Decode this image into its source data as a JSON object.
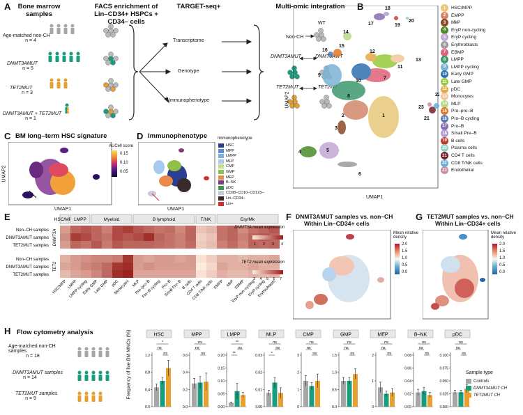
{
  "panels": {
    "A": "A",
    "B": "B",
    "C": "C",
    "D": "D",
    "E": "E",
    "F": "F",
    "G": "G",
    "H": "H"
  },
  "panelA": {
    "col_titles": [
      "Bone marrow samples",
      "FACS enrichment of Lin–CD34+ HSPCs + CD34– cells",
      "TARGET-seq+",
      "Multi-omic integration"
    ],
    "groups": [
      {
        "label": "Age-matched non-CH",
        "n": "n = 4",
        "color": "#a6a6a6"
      },
      {
        "label": "DNMT3AMUT",
        "n": "n = 5",
        "color": "#1a9c7e"
      },
      {
        "label": "TET2MUT",
        "n": "n = 3",
        "color": "#e5a02f"
      },
      {
        "label": "DNMT3AMUT + TET2MUT",
        "n": "n = 1",
        "color": "#1a9c7e"
      }
    ],
    "assays": [
      "Transcriptome",
      "Genotype",
      "Immunophenotype"
    ],
    "integration": [
      "WT",
      "Non-CH",
      "DNMT3AMUT",
      "DNMT3AWT",
      "TET2MUT",
      "TET2WT"
    ]
  },
  "panelB": {
    "xlabel": "UMAP1",
    "ylabel": "UMAP2",
    "clusters": [
      {
        "id": "1",
        "name": "HSC/MPP",
        "color": "#e8c77a"
      },
      {
        "id": "2",
        "name": "EMPP",
        "color": "#d3876a"
      },
      {
        "id": "3",
        "name": "MkP",
        "color": "#8b4a24"
      },
      {
        "id": "4",
        "name": "EryP non-cycling",
        "color": "#4a8c2a"
      },
      {
        "id": "5",
        "name": "EryP cycling",
        "color": "#c4a7d4"
      },
      {
        "id": "6",
        "name": "Erythroblasts",
        "color": "#9c9c9c"
      },
      {
        "id": "7",
        "name": "EBMP",
        "color": "#e0627a"
      },
      {
        "id": "8",
        "name": "LMPP",
        "color": "#3d9a6e"
      },
      {
        "id": "9",
        "name": "LMPP cycling",
        "color": "#7ab5d6"
      },
      {
        "id": "10",
        "name": "Early GMP",
        "color": "#2f6fb0"
      },
      {
        "id": "11",
        "name": "Late GMP",
        "color": "#9ac93c"
      },
      {
        "id": "12",
        "name": "pDC",
        "color": "#e6a84a"
      },
      {
        "id": "13",
        "name": "Monocytes",
        "color": "#f0c89a"
      },
      {
        "id": "14",
        "name": "MLP",
        "color": "#b9d98a"
      },
      {
        "id": "15",
        "name": "Pre–pro–B",
        "color": "#e07a2a"
      },
      {
        "id": "16",
        "name": "Pro–B cycling",
        "color": "#5a7ab0"
      },
      {
        "id": "17",
        "name": "Pro–B",
        "color": "#8a6fb0"
      },
      {
        "id": "18",
        "name": "Small Pre–B",
        "color": "#b39ad6"
      },
      {
        "id": "19",
        "name": "B cells",
        "color": "#c0392b"
      },
      {
        "id": "20",
        "name": "Plasma cells",
        "color": "#8fd0c4"
      },
      {
        "id": "21",
        "name": "CD4 T cells",
        "color": "#7a1f2a"
      },
      {
        "id": "22",
        "name": "CD8 T/NK cells",
        "color": "#6ab0d8"
      },
      {
        "id": "23",
        "name": "Endothelial",
        "color": "#c98aa0"
      }
    ]
  },
  "panelC": {
    "title": "BM long–term HSC signature",
    "xlabel": "UMAP1",
    "ylabel": "UMAP2",
    "legend_title": "AUCell score",
    "ticks": [
      "0.15",
      "0.10",
      "0.05"
    ]
  },
  "panelD": {
    "title": "Immunophenotype",
    "xlabel": "UMAP1",
    "legend_title": "Immunophenotype",
    "items": [
      {
        "name": "HSC",
        "color": "#2c3e8f"
      },
      {
        "name": "MPP",
        "color": "#5b8fd0"
      },
      {
        "name": "LMPP",
        "color": "#7ab0e0"
      },
      {
        "name": "MLP",
        "color": "#a8c8ef"
      },
      {
        "name": "CMP",
        "color": "#c5dd8a"
      },
      {
        "name": "GMP",
        "color": "#8fc04a"
      },
      {
        "name": "MEP",
        "color": "#e88a4a"
      },
      {
        "name": "B–NK",
        "color": "#8a3a7a"
      },
      {
        "name": "pDC",
        "color": "#3a9a4a"
      },
      {
        "name": "CD38–CD10–CD123–",
        "color": "#c8c8e0"
      },
      {
        "name": "Lin–CD34–",
        "color": "#3a2a2a"
      },
      {
        "name": "Lin+",
        "color": "#d03030"
      }
    ]
  },
  "panelE": {
    "groups": [
      "HSC/MPP",
      "LMPP",
      "Myeloid",
      "B lymphoid",
      "T/NK",
      "Ery/Mk"
    ],
    "row_labels": [
      "Non–CH samples",
      "DNMT3AMUT samples",
      "TET2MUT samples"
    ],
    "block_labels": [
      "DNMT3A",
      "TET2"
    ],
    "columns": [
      "HSC/MPP",
      "LMPP",
      "LMPP cycling",
      "Early GMP",
      "Late GMP",
      "pDC",
      "Monocytes",
      "MLP",
      "Pre–pro–B",
      "Pro–B cycling",
      "Pro–B",
      "Small Pre–B",
      "B cells",
      "CD4 T cells",
      "CD8 T/NK cells",
      "EMPP",
      "MkP",
      "EBMP",
      "EryP non–cycling",
      "EryP cycling",
      "Erythroblasts"
    ],
    "dnmt3a": [
      [
        2.2,
        3.0,
        3.2,
        3.0,
        2.6,
        3.4,
        3.6,
        3.2,
        3.0,
        2.8,
        2.9,
        2.5,
        3.0,
        1.6,
        1.8,
        2.8,
        3.0,
        2.4,
        2.8,
        3.0,
        3.2
      ],
      [
        2.4,
        3.6,
        3.4,
        3.0,
        2.8,
        3.4,
        3.2,
        3.4,
        3.8,
        3.0,
        2.8,
        2.6,
        3.0,
        1.4,
        1.6,
        2.8,
        3.0,
        2.6,
        3.0,
        3.2,
        3.0
      ],
      [
        2.2,
        3.0,
        2.8,
        3.2,
        2.7,
        3.2,
        3.0,
        3.0,
        3.0,
        2.9,
        2.8,
        2.6,
        2.9,
        1.5,
        1.7,
        2.6,
        2.9,
        2.5,
        3.0,
        2.9,
        3.0
      ]
    ],
    "tet2": [
      [
        4.2,
        4.6,
        4.8,
        5.0,
        5.0,
        5.2,
        6.6,
        4.6,
        4.4,
        4.6,
        4.6,
        4.4,
        4.6,
        3.2,
        3.6,
        4.2,
        4.2,
        4.0,
        4.2,
        4.2,
        4.4
      ],
      [
        4.4,
        4.6,
        5.0,
        5.2,
        5.6,
        6.6,
        6.8,
        4.6,
        4.8,
        4.6,
        4.6,
        4.6,
        4.6,
        3.0,
        3.4,
        4.4,
        4.2,
        4.2,
        4.4,
        4.2,
        4.2
      ],
      [
        4.0,
        4.4,
        4.6,
        5.0,
        5.6,
        6.8,
        7.0,
        4.4,
        4.4,
        4.4,
        4.4,
        4.4,
        4.4,
        3.2,
        3.6,
        4.2,
        4.0,
        4.0,
        4.2,
        4.0,
        4.2
      ]
    ],
    "legend1_title": "DNMT3A mean expression",
    "legend1_ticks": [
      "1",
      "2",
      "3",
      "4"
    ],
    "legend2_title": "TET2 mean expression",
    "legend2_ticks": [
      "3",
      "4",
      "5",
      "6",
      "7"
    ]
  },
  "panelF": {
    "title": "DNMT3AMUT samples vs. non–CH",
    "subtitle": "Within Lin–CD34+ cells",
    "legend_title": "Mean relative density",
    "ticks": [
      "2.0",
      "1.5",
      "1.0",
      "0.5",
      "0.0"
    ]
  },
  "panelG": {
    "title": "TET2MUT samples vs. non–CH",
    "subtitle": "Within Lin–CD34+ cells",
    "legend_title": "Mean relative density",
    "ticks": [
      "2.0",
      "1.5",
      "1.0",
      "0.5",
      "0.0"
    ]
  },
  "panelH": {
    "title": "Flow cytometry analysis",
    "groups": [
      {
        "label": "Age-matched non-CH samples",
        "n": "n = 18",
        "color": "#a6a6a6"
      },
      {
        "label": "DNMT3AMUT samples",
        "n": "n = 14",
        "color": "#1a9c7e"
      },
      {
        "label": "TET2MUT samples",
        "n": "n = 9",
        "color": "#e5a02f"
      }
    ],
    "ylabel": "Frequency of live BM MNCs (%)",
    "legend_title": "Sample type",
    "legend_items": [
      "Controls",
      "DNMT3AMUT CH",
      "TET2MUT CH"
    ],
    "colors": [
      "#a6a6a6",
      "#1a9c7e",
      "#e5a02f"
    ]
  },
  "chart_data": [
    {
      "type": "bar",
      "title": "HSC",
      "categories": [
        "Controls",
        "DNMT3AMUT CH",
        "TET2MUT CH"
      ],
      "values": [
        0.45,
        0.6,
        0.9
      ],
      "errors": [
        0.08,
        0.08,
        0.18
      ],
      "ylim": [
        0,
        1.2
      ],
      "yticks": [
        "0.0",
        "0.4",
        "0.8",
        "1.2"
      ],
      "sig": [
        {
          "a": 0,
          "b": 2,
          "label": "*"
        },
        {
          "a": 0,
          "b": 1,
          "label": "ns"
        },
        {
          "a": 1,
          "b": 2,
          "label": "ns"
        }
      ]
    },
    {
      "type": "bar",
      "title": "MPP",
      "categories": [
        "Controls",
        "DNMT3AMUT CH",
        "TET2MUT CH"
      ],
      "values": [
        0.27,
        0.28,
        0.29
      ],
      "errors": [
        0.06,
        0.07,
        0.1
      ],
      "ylim": [
        0,
        0.6
      ],
      "yticks": [
        "0.0",
        "0.2",
        "0.4",
        "0.6"
      ],
      "sig": [
        {
          "a": 0,
          "b": 2,
          "label": "ns"
        },
        {
          "a": 0,
          "b": 1,
          "label": "ns"
        },
        {
          "a": 1,
          "b": 2,
          "label": "ns"
        }
      ]
    },
    {
      "type": "bar",
      "title": "LMPP",
      "categories": [
        "Controls",
        "DNMT3AMUT CH",
        "TET2MUT CH"
      ],
      "values": [
        0.015,
        0.06,
        0.045
      ],
      "errors": [
        0.003,
        0.03,
        0.01
      ],
      "ylim": [
        0,
        0.2
      ],
      "yticks": [
        "0.00",
        "0.05",
        "0.10",
        "0.15",
        "0.20"
      ],
      "sig": [
        {
          "a": 0,
          "b": 2,
          "label": "**"
        },
        {
          "a": 1,
          "b": 2,
          "label": "ns"
        },
        {
          "a": 0,
          "b": 1,
          "label": "**"
        }
      ]
    },
    {
      "type": "bar",
      "title": "MLP",
      "categories": [
        "Controls",
        "DNMT3AMUT CH",
        "TET2MUT CH"
      ],
      "values": [
        0.008,
        0.014,
        0.008
      ],
      "errors": [
        0.0015,
        0.003,
        0.003
      ],
      "ylim": [
        0,
        0.03
      ],
      "yticks": [
        "0.00",
        "0.01",
        "0.02",
        "0.03"
      ],
      "sig": [
        {
          "a": 0,
          "b": 2,
          "label": "ns"
        },
        {
          "a": 1,
          "b": 2,
          "label": "ns"
        },
        {
          "a": 0,
          "b": 1,
          "label": "*"
        }
      ]
    },
    {
      "type": "bar",
      "title": "CMP",
      "categories": [
        "Controls",
        "DNMT3AMUT CH",
        "TET2MUT CH"
      ],
      "values": [
        1.5,
        1.2,
        1.5
      ],
      "errors": [
        0.3,
        0.2,
        0.4
      ],
      "ylim": [
        0,
        3
      ],
      "yticks": [
        "0",
        "1",
        "2",
        "3"
      ],
      "sig": [
        {
          "a": 0,
          "b": 2,
          "label": "ns"
        },
        {
          "a": 0,
          "b": 1,
          "label": "ns"
        },
        {
          "a": 1,
          "b": 2,
          "label": "ns"
        }
      ]
    },
    {
      "type": "bar",
      "title": "GMP",
      "categories": [
        "Controls",
        "DNMT3AMUT CH",
        "TET2MUT CH"
      ],
      "values": [
        0.75,
        0.75,
        0.95
      ],
      "errors": [
        0.1,
        0.1,
        0.15
      ],
      "ylim": [
        0,
        1.5
      ],
      "yticks": [
        "0.0",
        "0.5",
        "1.0",
        "1.5"
      ],
      "sig": [
        {
          "a": 0,
          "b": 2,
          "label": "ns"
        },
        {
          "a": 0,
          "b": 1,
          "label": "ns"
        },
        {
          "a": 1,
          "b": 2,
          "label": "ns"
        }
      ]
    },
    {
      "type": "bar",
      "title": "MEP",
      "categories": [
        "Controls",
        "DNMT3AMUT CH",
        "TET2MUT CH"
      ],
      "values": [
        0.75,
        0.5,
        0.55
      ],
      "errors": [
        0.2,
        0.1,
        0.15
      ],
      "ylim": [
        0,
        2
      ],
      "yticks": [
        "0",
        "1",
        "2"
      ],
      "sig": [
        {
          "a": 0,
          "b": 2,
          "label": "ns"
        },
        {
          "a": 0,
          "b": 1,
          "label": "ns"
        },
        {
          "a": 1,
          "b": 2,
          "label": "ns"
        }
      ]
    },
    {
      "type": "bar",
      "title": "B–NK",
      "categories": [
        "Controls",
        "DNMT3AMUT CH",
        "TET2MUT CH"
      ],
      "values": [
        0.022,
        0.024,
        0.018
      ],
      "errors": [
        0.005,
        0.006,
        0.004
      ],
      "ylim": [
        0,
        0.08
      ],
      "yticks": [
        "0.00",
        "0.02",
        "0.04",
        "0.06",
        "0.08"
      ],
      "sig": [
        {
          "a": 0,
          "b": 2,
          "label": "ns"
        },
        {
          "a": 0,
          "b": 1,
          "label": "ns"
        },
        {
          "a": 1,
          "b": 2,
          "label": "ns"
        }
      ]
    },
    {
      "type": "bar",
      "title": "pDC",
      "categories": [
        "Controls",
        "DNMT3AMUT CH",
        "TET2MUT CH"
      ],
      "values": [
        0.028,
        0.028,
        0.035
      ],
      "errors": [
        0.004,
        0.004,
        0.008
      ],
      "ylim": [
        0,
        0.1
      ],
      "yticks": [
        "0.000",
        "0.025",
        "0.050",
        "0.075",
        "0.100"
      ],
      "sig": [
        {
          "a": 0,
          "b": 2,
          "label": "ns"
        },
        {
          "a": 0,
          "b": 1,
          "label": "ns"
        },
        {
          "a": 1,
          "b": 2,
          "label": "ns"
        }
      ]
    }
  ]
}
